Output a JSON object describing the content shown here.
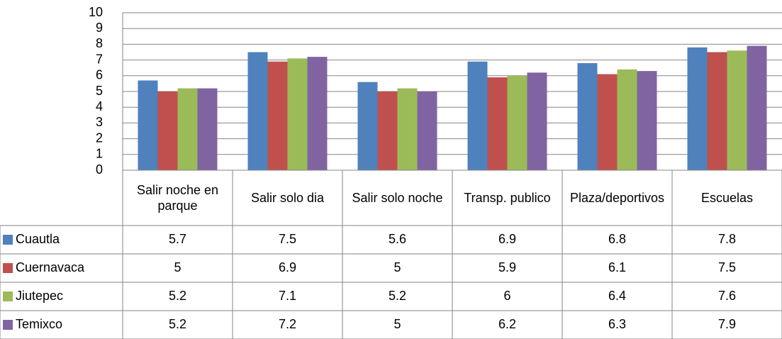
{
  "chart_data": {
    "type": "bar",
    "categories": [
      "Salir noche en parque",
      "Salir solo dia",
      "Salir solo noche",
      "Transp. publico",
      "Plaza/deportivos",
      "Escuelas"
    ],
    "series": [
      {
        "name": "Cuautla",
        "color": "#4f81bd",
        "values": [
          5.7,
          7.5,
          5.6,
          6.9,
          6.8,
          7.8
        ]
      },
      {
        "name": "Cuernavaca",
        "color": "#c0504d",
        "values": [
          5,
          6.9,
          5,
          5.9,
          6.1,
          7.5
        ]
      },
      {
        "name": "Jiutepec",
        "color": "#9bbb59",
        "values": [
          5.2,
          7.1,
          5.2,
          6,
          6.4,
          7.6
        ]
      },
      {
        "name": "Temixco",
        "color": "#8064a2",
        "values": [
          5.2,
          7.2,
          5,
          6.2,
          6.3,
          7.9
        ]
      }
    ],
    "ylim": [
      0,
      10
    ],
    "yticks": [
      0,
      1,
      2,
      3,
      4,
      5,
      6,
      7,
      8,
      9,
      10
    ],
    "grid": true,
    "data_table": true
  }
}
